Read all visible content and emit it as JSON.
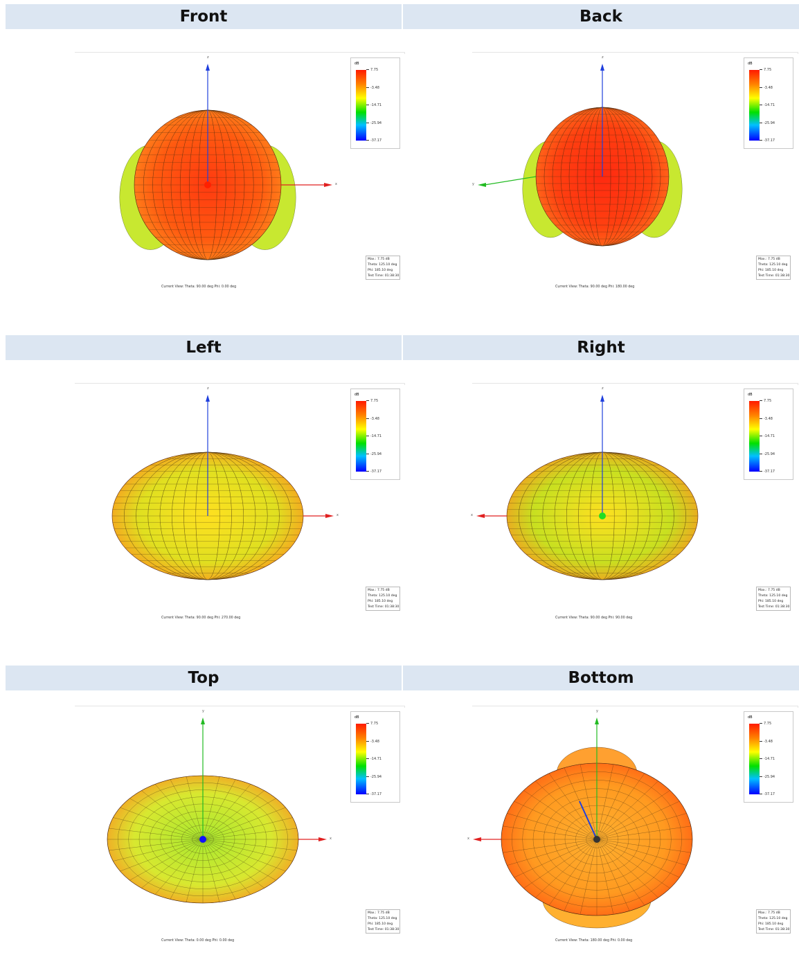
{
  "legend": {
    "unit": "dB",
    "ticks": [
      "7.75",
      "-3.48",
      "-14.71",
      "-25.94",
      "-37.17"
    ],
    "gradient_colors": [
      "#ff1a00",
      "#ff8000",
      "#ffff00",
      "#00e000",
      "#00c0ff",
      "#0000ff"
    ]
  },
  "info": {
    "max": "Max.: 7.75 dB",
    "theta": "Theta: 125.10 deg",
    "phi": "Phi: 185.10 deg",
    "time": "Test Time: 01:38:30"
  },
  "panels": [
    {
      "title": "Front",
      "view": "Current View:   Theta: 90.00 deg     Phi: 0.00 deg",
      "shape": "front",
      "axes": [
        "z-up",
        "x-right"
      ],
      "center_color": "#ff2000"
    },
    {
      "title": "Back",
      "view": "Current View:   Theta: 90.00 deg     Phi: 180.00 deg",
      "shape": "back",
      "axes": [
        "z-up",
        "y-left"
      ],
      "center_color": ""
    },
    {
      "title": "Left",
      "view": "Current View:   Theta: 90.00 deg     Phi: 270.00 deg",
      "shape": "left",
      "axes": [
        "z-up",
        "x-right"
      ],
      "center_color": ""
    },
    {
      "title": "Right",
      "view": "Current View:   Theta: 90.00 deg     Phi: 90.00 deg",
      "shape": "right",
      "axes": [
        "z-up",
        "x-left"
      ],
      "center_color": "#22dd22"
    },
    {
      "title": "Top",
      "view": "Current View:   Theta: 0.00 deg     Phi: 0.00 deg",
      "shape": "top",
      "axes": [
        "y-up",
        "x-right"
      ],
      "center_color": "#1010ff"
    },
    {
      "title": "Bottom",
      "view": "Current View:   Theta: 180.00 deg     Phi: 0.00 deg",
      "shape": "bottom",
      "axes": [
        "y-up",
        "x-left"
      ],
      "center_color": ""
    }
  ],
  "axis_names": {
    "x": "x",
    "y": "y",
    "z": "z"
  },
  "colors": {
    "header_bg": "#dce6f2",
    "z_axis": "#1f3fdd",
    "x_axis": "#e02020",
    "y_axis": "#22bb22"
  }
}
